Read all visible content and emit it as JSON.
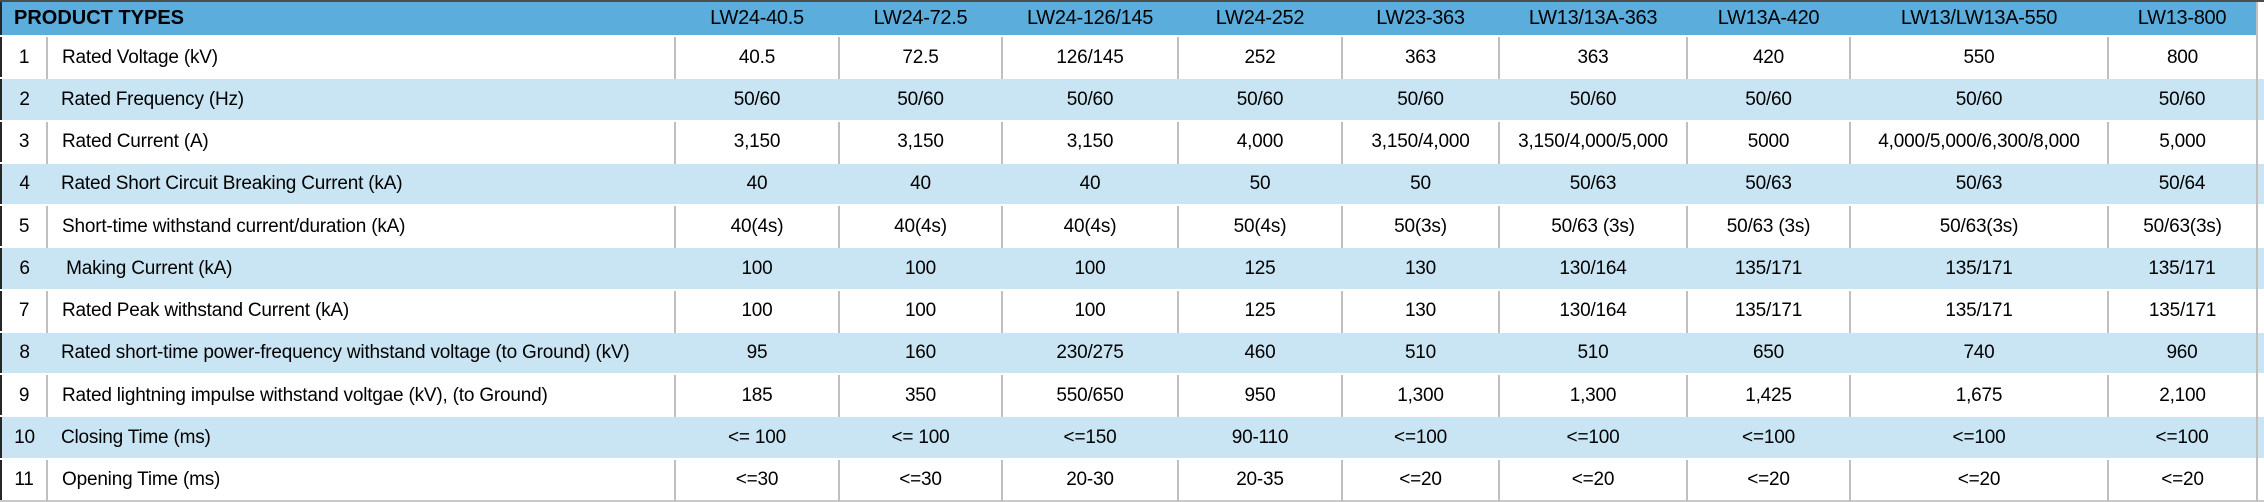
{
  "colors": {
    "header_bg": "#5BADDC",
    "stripe_bg": "#C9E5F3",
    "grid_line": "#BFBFBF",
    "text": "#000000"
  },
  "table": {
    "header": {
      "label": "PRODUCT TYPES",
      "columns": [
        "LW24-40.5",
        "LW24-72.5",
        "LW24-126/145",
        "LW24-252",
        "LW23-363",
        "LW13/13A-363",
        "LW13A-420",
        "LW13/LW13A-550",
        "LW13-800"
      ]
    },
    "rows": [
      {
        "num": "1",
        "label": "Rated Voltage (kV)",
        "values": [
          "40.5",
          "72.5",
          "126/145",
          "252",
          "363",
          "363",
          "420",
          "550",
          "800"
        ]
      },
      {
        "num": "2",
        "label": "Rated Frequency (Hz)",
        "values": [
          "50/60",
          "50/60",
          "50/60",
          "50/60",
          "50/60",
          "50/60",
          "50/60",
          "50/60",
          "50/60"
        ]
      },
      {
        "num": "3",
        "label": "Rated Current (A)",
        "values": [
          "3,150",
          "3,150",
          "3,150",
          "4,000",
          "3,150/4,000",
          "3,150/4,000/5,000",
          "5000",
          "4,000/5,000/6,300/8,000",
          "5,000"
        ]
      },
      {
        "num": "4",
        "label": "Rated Short Circuit Breaking Current (kA)",
        "values": [
          "40",
          "40",
          "40",
          "50",
          "50",
          "50/63",
          "50/63",
          "50/63",
          "50/64"
        ]
      },
      {
        "num": "5",
        "label": "Short-time withstand current/duration (kA)",
        "values": [
          "40(4s)",
          "40(4s)",
          "40(4s)",
          "50(4s)",
          "50(3s)",
          "50/63 (3s)",
          "50/63 (3s)",
          "50/63(3s)",
          "50/63(3s)"
        ]
      },
      {
        "num": "6",
        "label": " Making Current (kA)",
        "values": [
          "100",
          "100",
          "100",
          "125",
          "130",
          "130/164",
          "135/171",
          "135/171",
          "135/171"
        ]
      },
      {
        "num": "7",
        "label": "Rated Peak withstand Current (kA)",
        "values": [
          "100",
          "100",
          "100",
          "125",
          "130",
          "130/164",
          "135/171",
          "135/171",
          "135/171"
        ]
      },
      {
        "num": "8",
        "label": "Rated short-time power-frequency withstand voltage (to Ground) (kV)",
        "values": [
          "95",
          "160",
          "230/275",
          "460",
          "510",
          "510",
          "650",
          "740",
          "960"
        ]
      },
      {
        "num": "9",
        "label": "Rated lightning impulse withstand voltgae (kV), (to Ground)",
        "values": [
          "185",
          "350",
          "550/650",
          "950",
          "1,300",
          "1,300",
          "1,425",
          "1,675",
          "2,100"
        ]
      },
      {
        "num": "10",
        "label": "Closing Time (ms)",
        "values": [
          "<= 100",
          "<= 100",
          "<=150",
          "90-110",
          "<=100",
          "<=100",
          "<=100",
          "<=100",
          "<=100"
        ]
      },
      {
        "num": "11",
        "label": "Opening Time (ms)",
        "values": [
          "<=30",
          "<=30",
          "20-30",
          "20-35",
          "<=20",
          "<=20",
          "<=20",
          "<=20",
          "<=20"
        ]
      }
    ]
  }
}
